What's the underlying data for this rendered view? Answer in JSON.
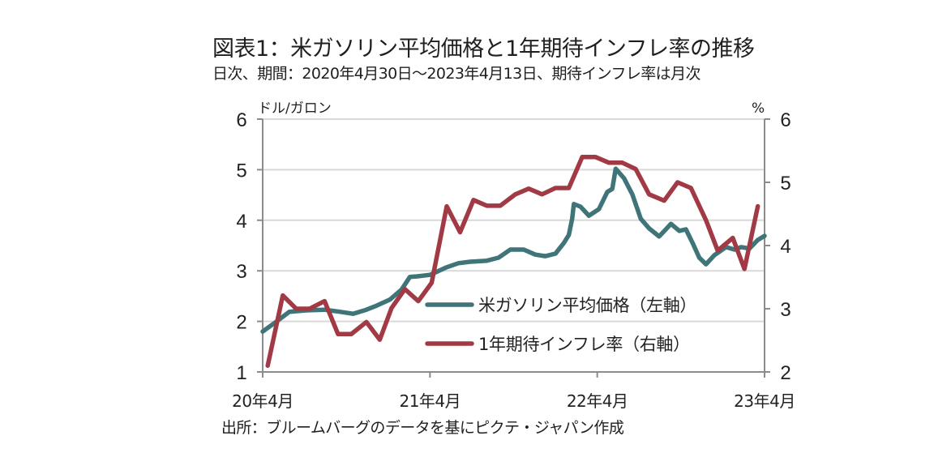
{
  "header": {
    "title": "図表1：米ガソリン平均価格と1年期待インフレ率の推移",
    "subtitle": "日次、期間：2020年4月30日～2023年4月13日、期待インフレ率は月次"
  },
  "footer": {
    "source": "出所：ブルームバーグのデータを基にピクテ・ジャパン作成"
  },
  "chart_data": {
    "type": "line",
    "title": "米ガソリン平均価格と1年期待インフレ率の推移",
    "xlabel": "",
    "x_tick_labels": [
      "20年4月",
      "21年4月",
      "22年4月",
      "23年4月"
    ],
    "x_range_years_from_2020_04": [
      0,
      3
    ],
    "left_axis": {
      "unit": "ドル/ガロン",
      "ylim": [
        1,
        6
      ],
      "ticks": [
        "1",
        "2",
        "3",
        "4",
        "5",
        "6"
      ]
    },
    "right_axis": {
      "unit": "%",
      "ylim": [
        2,
        6
      ],
      "ticks": [
        "2",
        "3",
        "4",
        "5",
        "6"
      ]
    },
    "grid": true,
    "legend_position": "lower-center",
    "series": [
      {
        "name": "米ガソリン平均価格（左軸）",
        "axis": "left",
        "color": "#3f7479",
        "frequency": "daily (sampled)",
        "points": [
          [
            0.0,
            1.8
          ],
          [
            0.08,
            1.99
          ],
          [
            0.16,
            2.19
          ],
          [
            0.27,
            2.22
          ],
          [
            0.37,
            2.23
          ],
          [
            0.46,
            2.19
          ],
          [
            0.54,
            2.15
          ],
          [
            0.61,
            2.22
          ],
          [
            0.68,
            2.31
          ],
          [
            0.76,
            2.43
          ],
          [
            0.83,
            2.63
          ],
          [
            0.88,
            2.88
          ],
          [
            0.92,
            2.89
          ],
          [
            1.0,
            2.92
          ],
          [
            1.1,
            3.07
          ],
          [
            1.17,
            3.15
          ],
          [
            1.24,
            3.18
          ],
          [
            1.34,
            3.2
          ],
          [
            1.41,
            3.26
          ],
          [
            1.48,
            3.42
          ],
          [
            1.56,
            3.42
          ],
          [
            1.63,
            3.32
          ],
          [
            1.69,
            3.29
          ],
          [
            1.75,
            3.34
          ],
          [
            1.8,
            3.55
          ],
          [
            1.83,
            3.71
          ],
          [
            1.85,
            4.03
          ],
          [
            1.86,
            4.32
          ],
          [
            1.9,
            4.27
          ],
          [
            1.95,
            4.09
          ],
          [
            2.01,
            4.22
          ],
          [
            2.06,
            4.56
          ],
          [
            2.09,
            4.62
          ],
          [
            2.11,
            5.02
          ],
          [
            2.16,
            4.83
          ],
          [
            2.21,
            4.51
          ],
          [
            2.26,
            4.03
          ],
          [
            2.31,
            3.84
          ],
          [
            2.37,
            3.68
          ],
          [
            2.41,
            3.82
          ],
          [
            2.44,
            3.93
          ],
          [
            2.49,
            3.79
          ],
          [
            2.53,
            3.82
          ],
          [
            2.57,
            3.55
          ],
          [
            2.61,
            3.26
          ],
          [
            2.65,
            3.13
          ],
          [
            2.7,
            3.31
          ],
          [
            2.77,
            3.47
          ],
          [
            2.82,
            3.42
          ],
          [
            2.86,
            3.47
          ],
          [
            2.91,
            3.44
          ],
          [
            2.96,
            3.61
          ],
          [
            3.0,
            3.69
          ]
        ]
      },
      {
        "name": "1年期待インフレ率（右軸）",
        "axis": "right",
        "color": "#a13a44",
        "frequency": "monthly",
        "points": [
          [
            0.03,
            2.1
          ],
          [
            0.12,
            3.21
          ],
          [
            0.2,
            3.0
          ],
          [
            0.28,
            3.0
          ],
          [
            0.37,
            3.12
          ],
          [
            0.45,
            2.6
          ],
          [
            0.53,
            2.6
          ],
          [
            0.62,
            2.79
          ],
          [
            0.7,
            2.51
          ],
          [
            0.77,
            3.01
          ],
          [
            0.85,
            3.31
          ],
          [
            0.93,
            3.12
          ],
          [
            1.01,
            3.41
          ],
          [
            1.1,
            4.62
          ],
          [
            1.18,
            4.21
          ],
          [
            1.26,
            4.72
          ],
          [
            1.34,
            4.63
          ],
          [
            1.42,
            4.63
          ],
          [
            1.51,
            4.81
          ],
          [
            1.59,
            4.9
          ],
          [
            1.67,
            4.81
          ],
          [
            1.75,
            4.91
          ],
          [
            1.83,
            4.91
          ],
          [
            1.91,
            5.4
          ],
          [
            1.99,
            5.4
          ],
          [
            2.07,
            5.31
          ],
          [
            2.15,
            5.31
          ],
          [
            2.23,
            5.21
          ],
          [
            2.31,
            4.81
          ],
          [
            2.4,
            4.71
          ],
          [
            2.48,
            5.0
          ],
          [
            2.56,
            4.91
          ],
          [
            2.65,
            4.4
          ],
          [
            2.72,
            3.92
          ],
          [
            2.81,
            4.12
          ],
          [
            2.88,
            3.63
          ],
          [
            2.96,
            4.62
          ]
        ]
      }
    ]
  }
}
